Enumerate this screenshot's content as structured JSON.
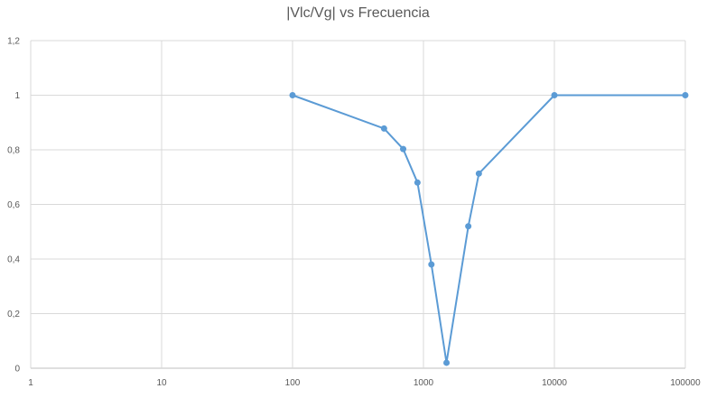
{
  "chart_data": {
    "type": "scatter",
    "title": "|Vlc/Vg| vs Frecuencia",
    "xlabel": "",
    "ylabel": "",
    "x_scale": "log",
    "xlim": [
      1,
      100000
    ],
    "ylim": [
      0,
      1.2
    ],
    "x_ticks": [
      "1",
      "10",
      "100",
      "1000",
      "10000",
      "100000"
    ],
    "y_ticks": [
      "0",
      "0,2",
      "0,4",
      "0,6",
      "0,8",
      "1",
      "1,2"
    ],
    "grid": true,
    "legend": "none",
    "series": [
      {
        "x": [
          100,
          500,
          700,
          900,
          1150,
          1500,
          2200,
          2650,
          10000,
          100000
        ],
        "y": [
          1.0,
          0.878,
          0.803,
          0.68,
          0.38,
          0.02,
          0.52,
          0.713,
          1.0,
          1.0
        ],
        "color": "#5b9bd5"
      }
    ],
    "colors": {
      "line": "#5b9bd5",
      "grid": "#d9d9d9",
      "text": "#595959"
    }
  }
}
